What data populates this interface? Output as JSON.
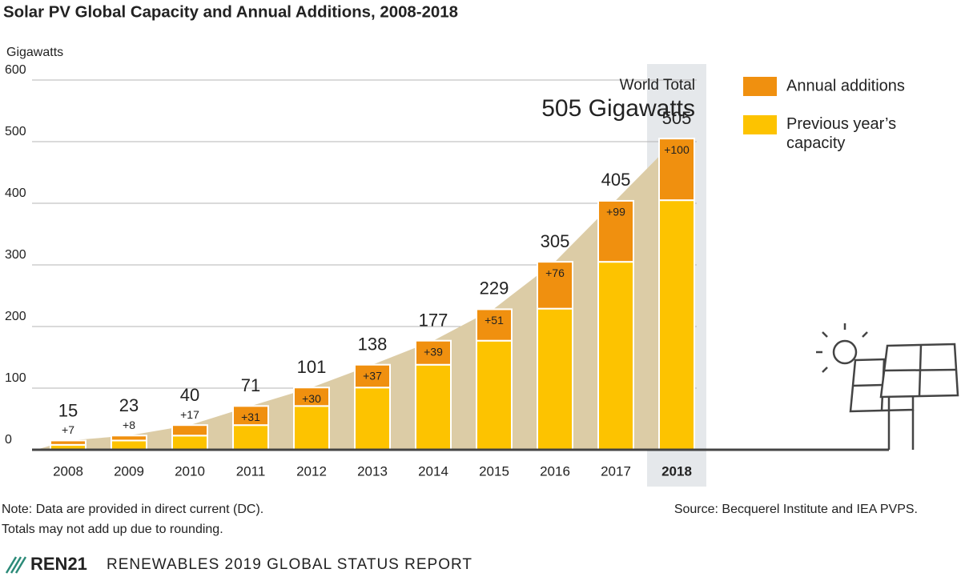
{
  "chart_data": {
    "type": "stacked_bar",
    "title": "Solar PV Global Capacity and Annual Additions, 2008-2018",
    "y_label": "Gigawatts",
    "categories": [
      "2008",
      "2009",
      "2010",
      "2011",
      "2012",
      "2013",
      "2014",
      "2015",
      "2016",
      "2017",
      "2018"
    ],
    "series": [
      {
        "name": "Previous year’s capacity",
        "color": "#fdc300",
        "values": [
          8,
          15,
          23,
          40,
          71,
          101,
          138,
          177,
          229,
          305,
          405
        ]
      },
      {
        "name": "Annual additions",
        "color": "#f0900f",
        "values": [
          7,
          8,
          17,
          31,
          30,
          37,
          39,
          51,
          76,
          99,
          100
        ],
        "value_labels": [
          "+7",
          "+8",
          "+17",
          "+31",
          "+30",
          "+37",
          "+39",
          "+51",
          "+76",
          "+99",
          "+100"
        ]
      }
    ],
    "totals": [
      15,
      23,
      40,
      71,
      101,
      138,
      177,
      229,
      305,
      405,
      505
    ],
    "area_color": "#dccca6",
    "highlight_category": "2018",
    "annotation_label": "World Total",
    "annotation_value": "505 Gigawatts",
    "ylim": [
      0,
      600
    ],
    "yticks": [
      0,
      100,
      200,
      300,
      400,
      500,
      600
    ],
    "grid": true,
    "legend": "top-right",
    "notes": [
      "Note: Data are provided in direct current (DC).",
      "Totals may not add up due to rounding."
    ],
    "source": "Source: Becquerel Institute and IEA PVPS.",
    "footer_brand": "REN21",
    "footer_report": "RENEWABLES 2019 GLOBAL STATUS REPORT"
  }
}
